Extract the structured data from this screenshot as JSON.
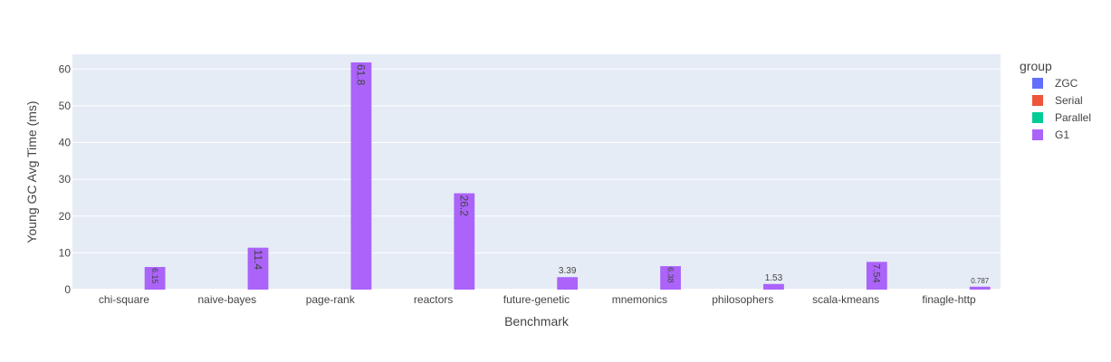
{
  "chart_data": {
    "type": "bar",
    "categories": [
      "chi-square",
      "naive-bayes",
      "page-rank",
      "reactors",
      "future-genetic",
      "mnemonics",
      "philosophers",
      "scala-kmeans",
      "finagle-http"
    ],
    "series": [
      {
        "name": "ZGC",
        "color": "#636efa",
        "values": [
          null,
          null,
          null,
          null,
          null,
          null,
          null,
          null,
          null
        ],
        "labels": [
          "",
          "",
          "",
          "",
          "",
          "",
          "",
          "",
          ""
        ]
      },
      {
        "name": "Serial",
        "color": "#ef553b",
        "values": [
          null,
          null,
          null,
          null,
          null,
          null,
          null,
          null,
          null
        ],
        "labels": [
          "",
          "",
          "",
          "",
          "",
          "",
          "",
          "",
          ""
        ]
      },
      {
        "name": "Parallel",
        "color": "#00cc96",
        "values": [
          null,
          null,
          null,
          null,
          null,
          null,
          null,
          null,
          null
        ],
        "labels": [
          "",
          "",
          "",
          "",
          "",
          "",
          "",
          "",
          ""
        ]
      },
      {
        "name": "G1",
        "color": "#ab63fa",
        "values": [
          6.15,
          11.4,
          61.8,
          26.2,
          3.39,
          6.38,
          1.53,
          7.54,
          0.787
        ],
        "labels": [
          "6.15",
          "11.4",
          "61.8",
          "26.2",
          "3.39",
          "6.38",
          "1.53",
          "7.54",
          "0.787"
        ]
      }
    ],
    "xlabel": "Benchmark",
    "ylabel": "Young GC Avg Time (ms)",
    "ylim": [
      0,
      64
    ],
    "yticks": [
      0,
      10,
      20,
      30,
      40,
      50,
      60
    ],
    "legend_title": "group",
    "legend_position": "right",
    "grid": true
  }
}
